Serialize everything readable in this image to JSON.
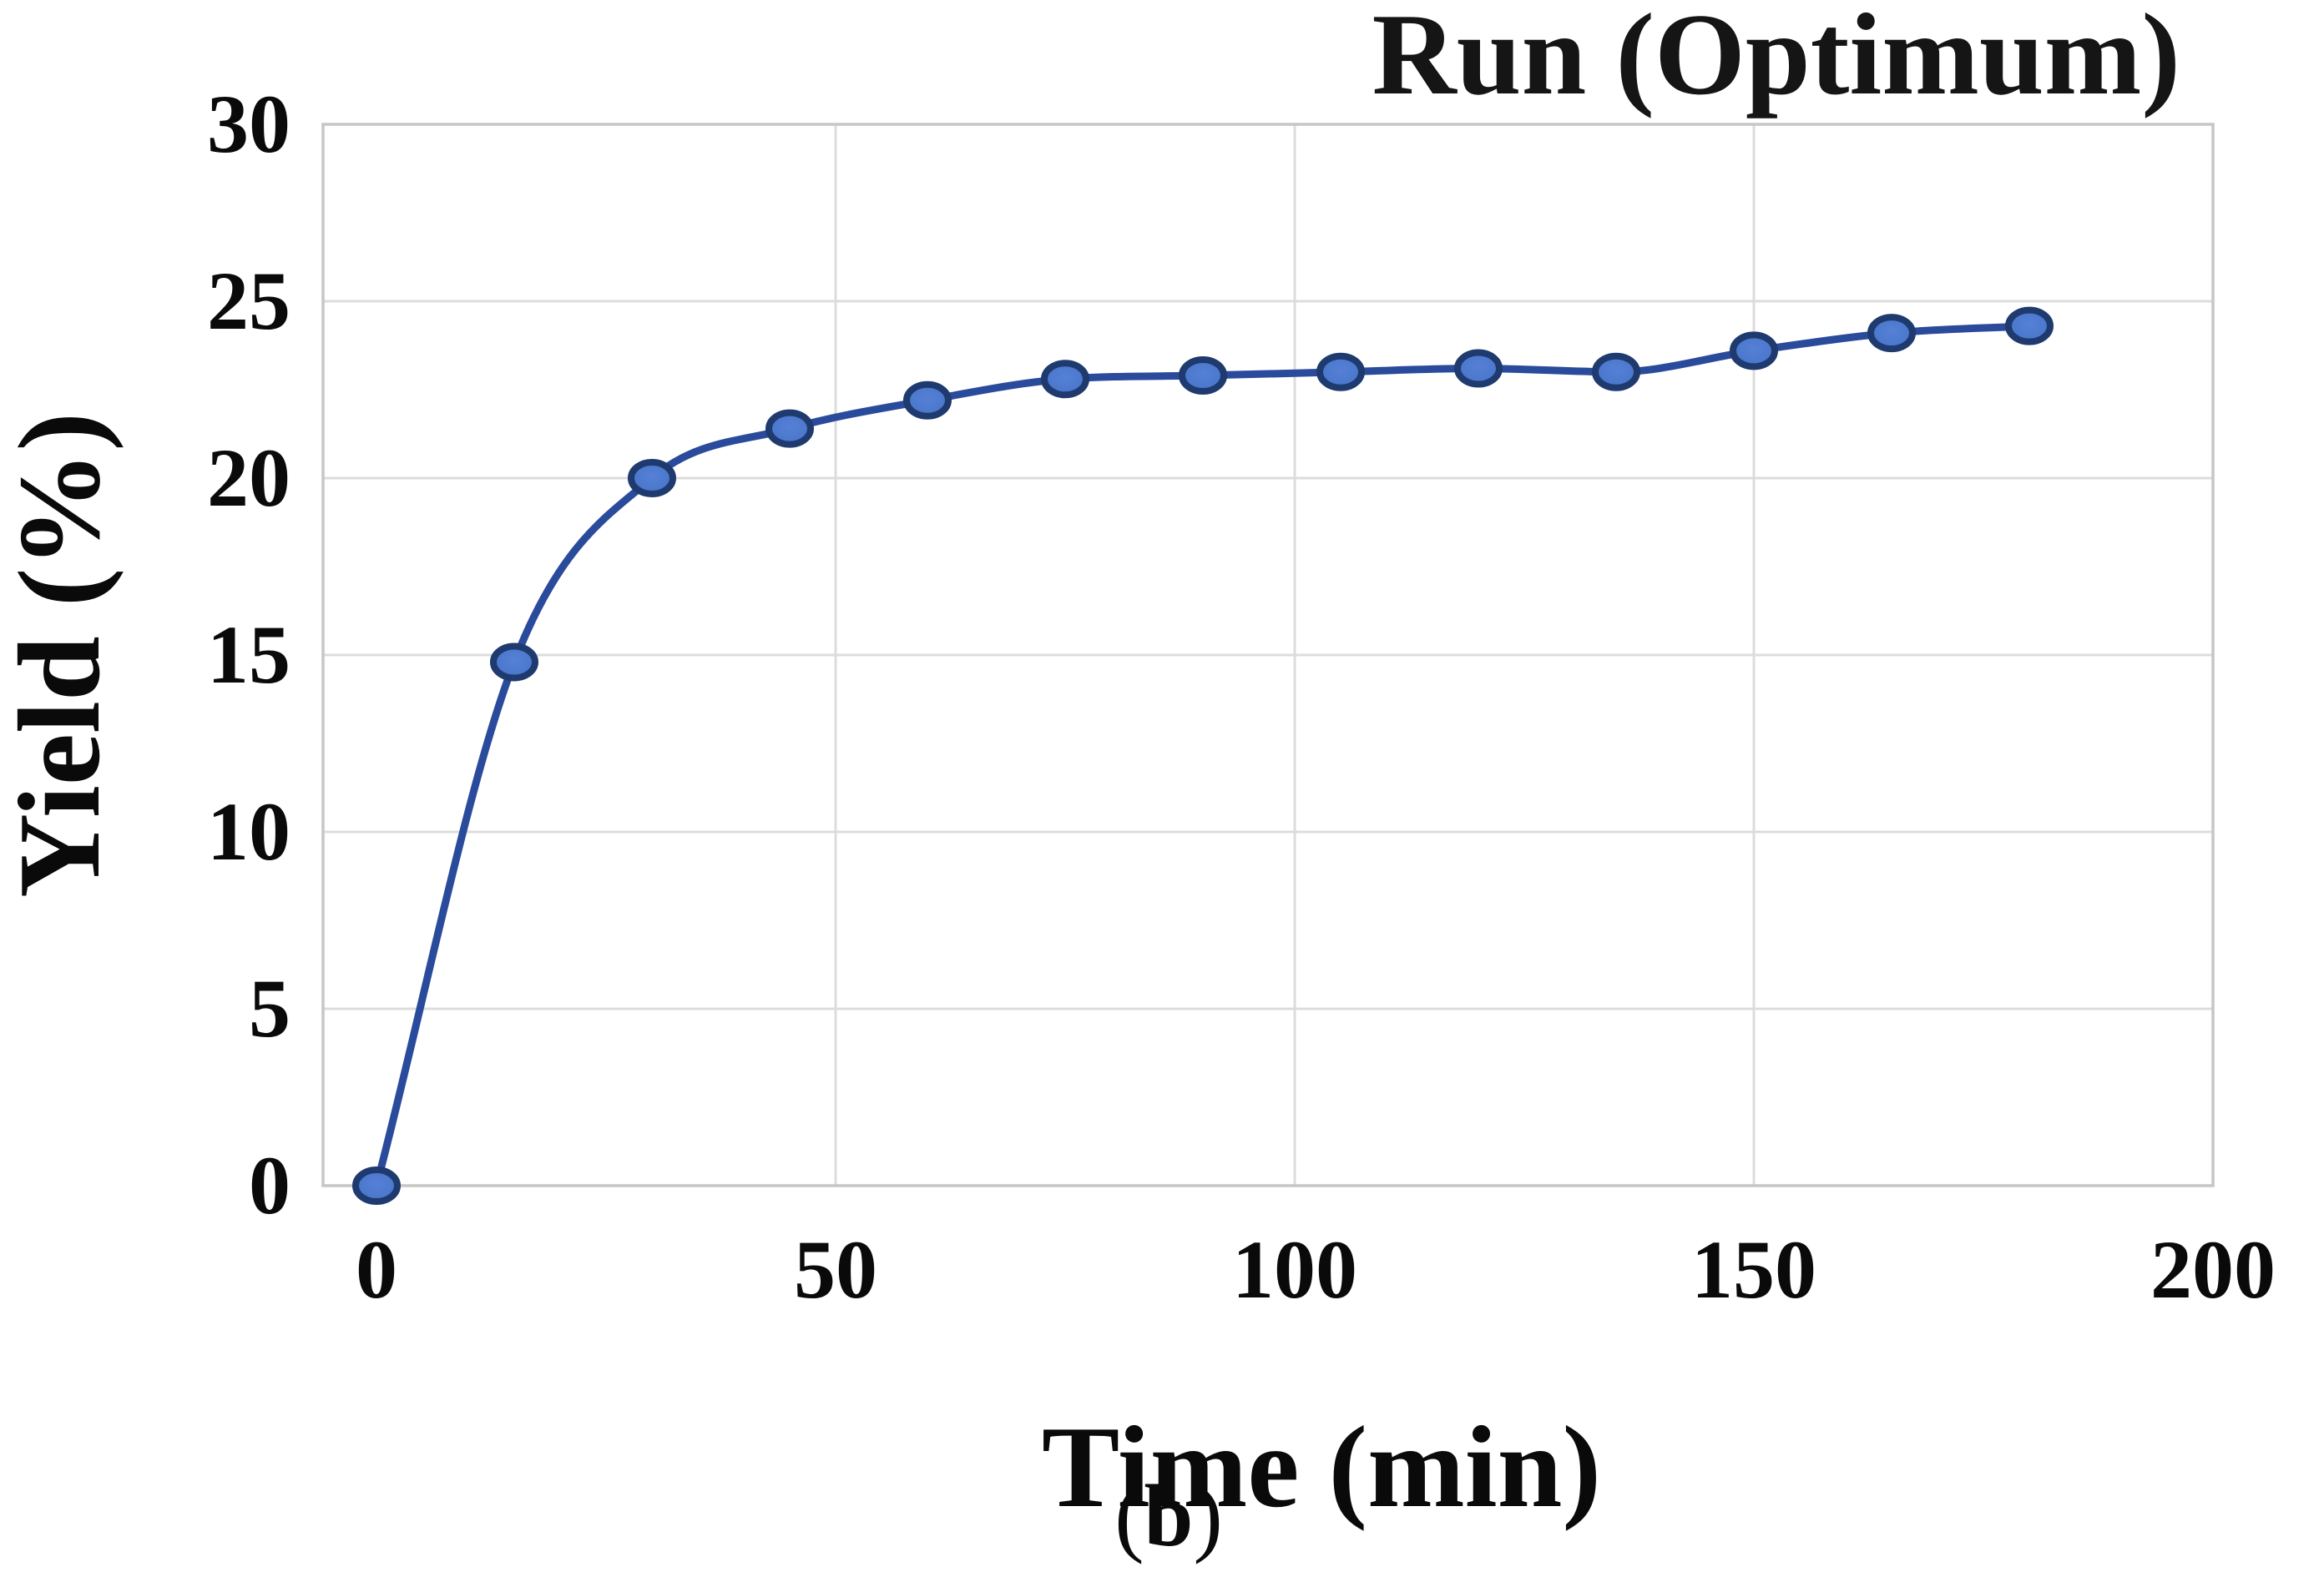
{
  "figure": {
    "caption": {
      "open": "(",
      "letter": "b",
      "close": ")"
    }
  },
  "chart_data": {
    "type": "line",
    "title": "Run (Optimum)",
    "xlabel": "Time (min)",
    "ylabel": "Yield (%)",
    "x": [
      0,
      15,
      30,
      45,
      60,
      75,
      90,
      105,
      120,
      135,
      150,
      165,
      180
    ],
    "series": [
      {
        "name": "Run (Optimum)",
        "values": [
          0,
          14.8,
          20.0,
          21.4,
          22.2,
          22.8,
          22.9,
          23.0,
          23.1,
          23.0,
          23.6,
          24.1,
          24.3
        ]
      }
    ],
    "x_ticks": [
      "0",
      "50",
      "100",
      "150",
      "200"
    ],
    "x_tick_values": [
      0,
      50,
      100,
      150,
      200
    ],
    "y_ticks": [
      "0",
      "5",
      "10",
      "15",
      "20",
      "25",
      "30"
    ],
    "y_tick_values": [
      0,
      5,
      10,
      15,
      20,
      25,
      30
    ],
    "xlim": [
      0,
      200
    ],
    "ylim": [
      0,
      30
    ],
    "grid": true,
    "smooth": true,
    "legend_position": "none",
    "marker": "circle",
    "colors": {
      "line": "#2A4B9B",
      "marker_fill": "#4673C8",
      "marker_fill_center": "#5580D6",
      "marker_edge": "#1E3A6E",
      "gridline": "#DCDCDC",
      "plot_border": "#C6C6C6",
      "text": "#0a0a0a"
    }
  }
}
